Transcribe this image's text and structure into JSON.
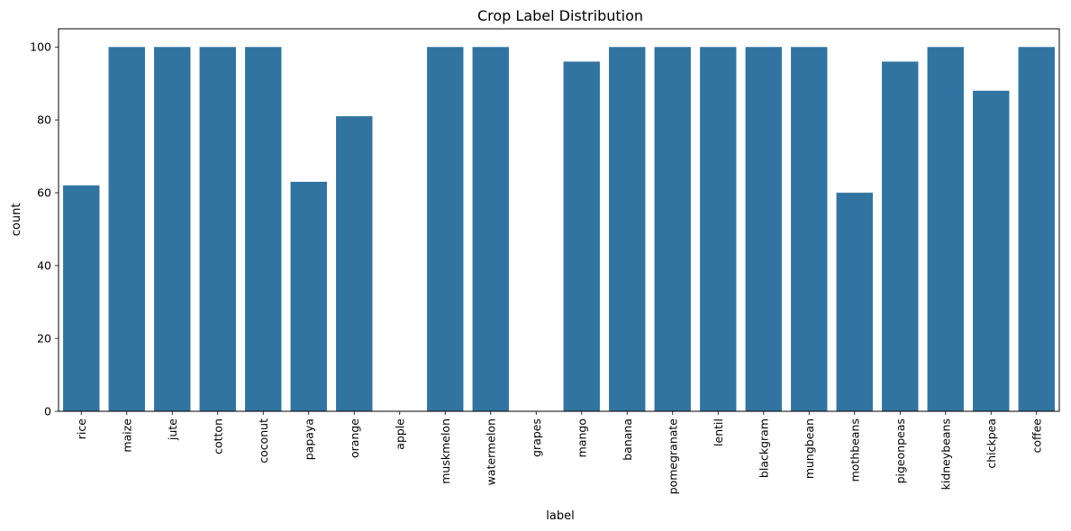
{
  "chart_data": {
    "type": "bar",
    "title": "Crop Label Distribution",
    "xlabel": "label",
    "ylabel": "count",
    "ylim": [
      0,
      105
    ],
    "yticks": [
      0,
      20,
      40,
      60,
      80,
      100
    ],
    "categories": [
      "rice",
      "maize",
      "jute",
      "cotton",
      "coconut",
      "papaya",
      "orange",
      "apple",
      "muskmelon",
      "watermelon",
      "grapes",
      "mango",
      "banana",
      "pomegranate",
      "lentil",
      "blackgram",
      "mungbean",
      "mothbeans",
      "pigeonpeas",
      "kidneybeans",
      "chickpea",
      "coffee"
    ],
    "values": [
      62,
      100,
      100,
      100,
      100,
      63,
      81,
      0,
      100,
      100,
      0,
      96,
      100,
      100,
      100,
      100,
      100,
      60,
      96,
      100,
      88,
      100
    ],
    "bar_color": "#3274a1",
    "grid": false
  }
}
